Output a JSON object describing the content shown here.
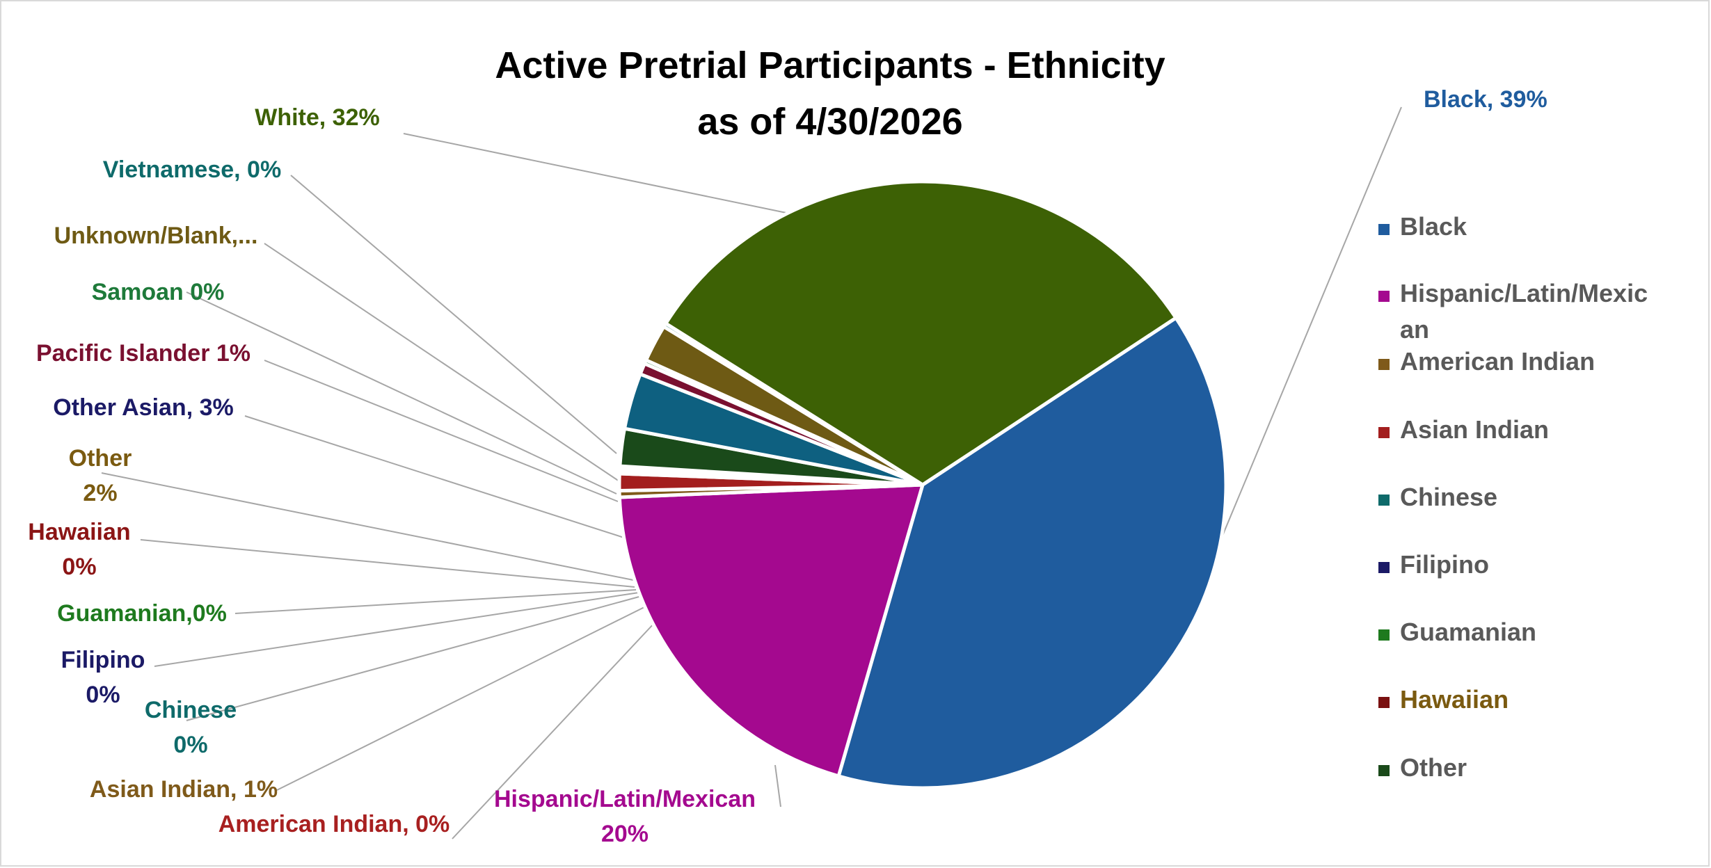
{
  "chart_data": {
    "type": "pie",
    "title": [
      "Active Pretrial Participants - Ethnicity",
      "as of 4/30/2026"
    ],
    "slices": [
      {
        "name": "Black",
        "value": 39,
        "color": "#1F5C9E",
        "label_lines": [
          "Black, 39%"
        ],
        "label_color": "#1F5C9E"
      },
      {
        "name": "Hispanic/Latin/Mexican",
        "value": 20,
        "color": "#A4098F",
        "label_lines": [
          "Hispanic/Latin/Mexican",
          "20%"
        ],
        "label_color": "#A4098F"
      },
      {
        "name": "American Indian",
        "value": 0.35,
        "color": "#7F5A1A",
        "label_lines": [
          "American Indian, 0%"
        ],
        "label_color": "#A82020"
      },
      {
        "name": "Asian Indian",
        "value": 0.9,
        "color": "#A31E1E",
        "label_lines": [
          "Asian Indian, 1%"
        ],
        "label_color": "#7F5A1A"
      },
      {
        "name": "Chinese",
        "value": 0.1,
        "color": "#0E6A6A",
        "label_lines": [
          "Chinese",
          "0%"
        ],
        "label_color": "#0E6A6A"
      },
      {
        "name": "Filipino",
        "value": 0.1,
        "color": "#1B1A66",
        "label_lines": [
          "Filipino",
          "0%"
        ],
        "label_color": "#1B1A66"
      },
      {
        "name": "Guamanian",
        "value": 0.1,
        "color": "#1E7A1E",
        "label_lines": [
          "Guamanian,0%"
        ],
        "label_color": "#1E7A1E"
      },
      {
        "name": "Hawaiian",
        "value": 0.1,
        "color": "#7A1010",
        "label_lines": [
          "Hawaiian",
          "0%"
        ],
        "label_color": "#8B1515"
      },
      {
        "name": "Other",
        "value": 2,
        "color": "#1A4A1A",
        "label_lines": [
          "Other",
          "2%"
        ],
        "label_color": "#7A5A10"
      },
      {
        "name": "Other Asian",
        "value": 3,
        "color": "#0E6080",
        "label_lines": [
          "Other Asian, 3%"
        ],
        "label_color": "#1B1A66"
      },
      {
        "name": "Pacific Islander",
        "value": 0.6,
        "color": "#7A1030",
        "label_lines": [
          "Pacific Islander 1%"
        ],
        "label_color": "#7A1030"
      },
      {
        "name": "Samoan",
        "value": 0.2,
        "color": "#1E7A3A",
        "label_lines": [
          "Samoan 0%"
        ],
        "label_color": "#1E7A3A"
      },
      {
        "name": "Unknown/Blank",
        "value": 2,
        "color": "#6E5A14",
        "label_lines": [
          "Unknown/Blank,..."
        ],
        "label_color": "#6E5A14"
      },
      {
        "name": "Vietnamese",
        "value": 0.2,
        "color": "#0E6A6A",
        "label_lines": [
          "Vietnamese, 0%"
        ],
        "label_color": "#0E6A6A"
      },
      {
        "name": "White",
        "value": 32,
        "color": "#3D6105",
        "label_lines": [
          "White, 32%"
        ],
        "label_color": "#3D6105"
      }
    ],
    "legend": {
      "placement": "right",
      "entries": [
        {
          "lines": [
            "Black"
          ],
          "color": "#1F5C9E",
          "text_color": "#595959"
        },
        {
          "lines": [
            "Hispanic/Latin/Mexic",
            "an"
          ],
          "color": "#A4098F",
          "text_color": "#595959"
        },
        {
          "lines": [
            "American Indian"
          ],
          "color": "#7F5A1A",
          "text_color": "#595959"
        },
        {
          "lines": [
            "Asian Indian"
          ],
          "color": "#A31E1E",
          "text_color": "#595959"
        },
        {
          "lines": [
            "Chinese"
          ],
          "color": "#0E6A6A",
          "text_color": "#595959"
        },
        {
          "lines": [
            "Filipino"
          ],
          "color": "#1B1A66",
          "text_color": "#595959"
        },
        {
          "lines": [
            "Guamanian"
          ],
          "color": "#1E7A1E",
          "text_color": "#595959"
        },
        {
          "lines": [
            "Hawaiian"
          ],
          "color": "#7A1010",
          "text_color": "#7A5A10"
        },
        {
          "lines": [
            "Other"
          ],
          "color": "#1A4A1A",
          "text_color": "#595959"
        }
      ]
    }
  }
}
